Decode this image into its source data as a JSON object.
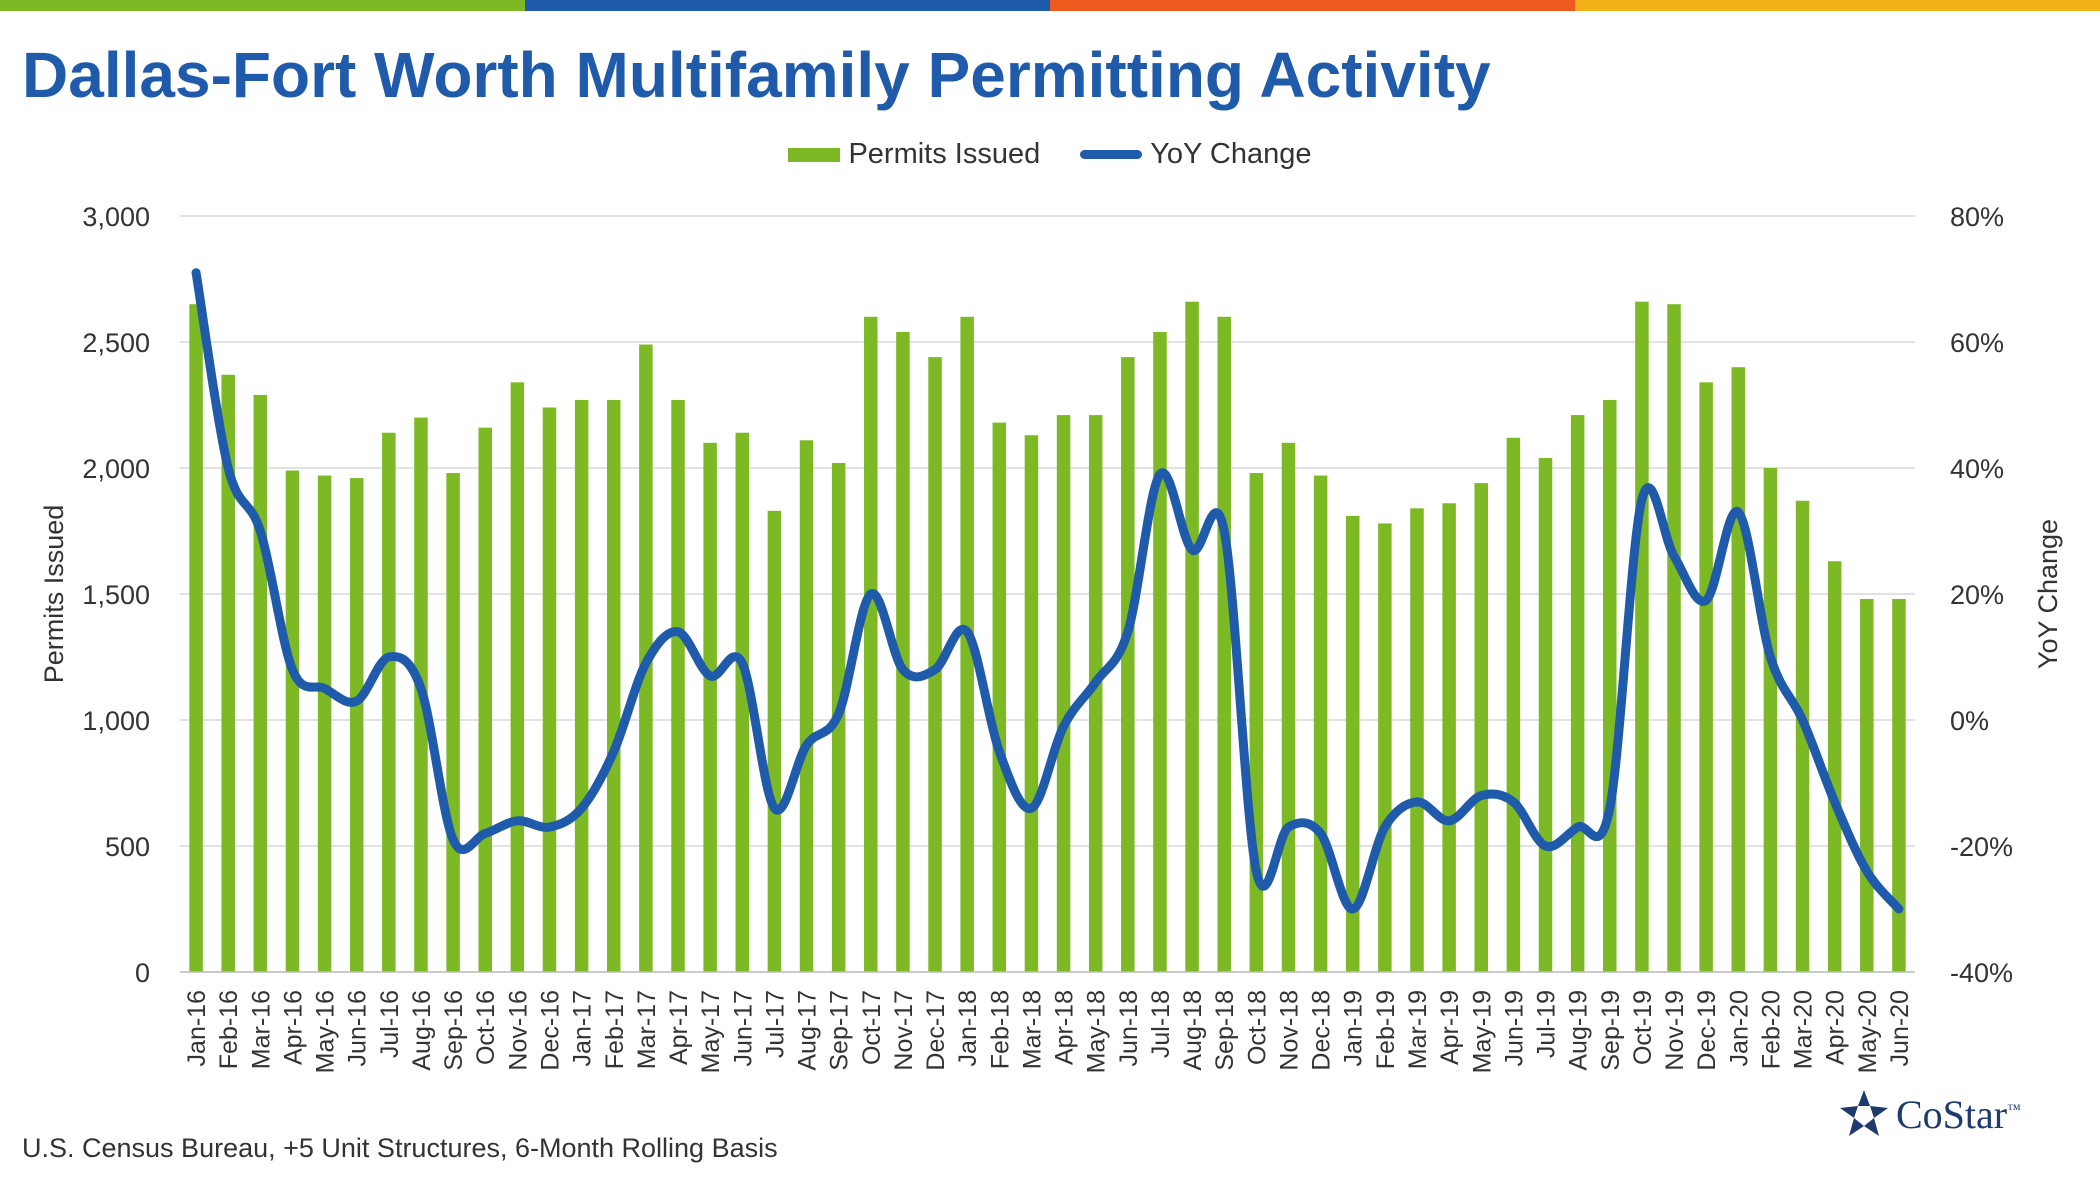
{
  "header": {
    "title": "Dallas-Fort Worth Multifamily Permitting Activity",
    "band_colors": [
      "#7CB924",
      "#1F5BAA",
      "#EE5A1E",
      "#F3B019"
    ]
  },
  "legend": {
    "bars_label": "Permits Issued",
    "line_label": "YoY Change"
  },
  "footer": {
    "source": "U.S. Census Bureau, +5 Unit Structures, 6-Month Rolling Basis",
    "logo_text": "CoStar",
    "logo_mark": "™"
  },
  "colors": {
    "bar": "#7CB924",
    "line": "#1F5BAA",
    "title": "#1F5BAA",
    "grid": "#D9D9D9"
  },
  "chart_data": {
    "type": "bar",
    "xlabel": "",
    "ylabel": "Permits Issued",
    "y2label": "YoY Change",
    "ylim": [
      0,
      3000
    ],
    "y2lim": [
      -40,
      80
    ],
    "yticks": [
      "0",
      "500",
      "1,000",
      "1,500",
      "2,000",
      "2,500",
      "3,000"
    ],
    "y2ticks": [
      "-40%",
      "-20%",
      "0%",
      "20%",
      "40%",
      "60%",
      "80%"
    ],
    "grid": true,
    "legend_position": "top",
    "categories": [
      "Jan-16",
      "Feb-16",
      "Mar-16",
      "Apr-16",
      "May-16",
      "Jun-16",
      "Jul-16",
      "Aug-16",
      "Sep-16",
      "Oct-16",
      "Nov-16",
      "Dec-16",
      "Jan-17",
      "Feb-17",
      "Mar-17",
      "Apr-17",
      "May-17",
      "Jun-17",
      "Jul-17",
      "Aug-17",
      "Sep-17",
      "Oct-17",
      "Nov-17",
      "Dec-17",
      "Jan-18",
      "Feb-18",
      "Mar-18",
      "Apr-18",
      "May-18",
      "Jun-18",
      "Jul-18",
      "Aug-18",
      "Sep-18",
      "Oct-18",
      "Nov-18",
      "Dec-18",
      "Jan-19",
      "Feb-19",
      "Mar-19",
      "Apr-19",
      "May-19",
      "Jun-19",
      "Jul-19",
      "Aug-19",
      "Sep-19",
      "Oct-19",
      "Nov-19",
      "Dec-19",
      "Jan-20",
      "Feb-20",
      "Mar-20",
      "Apr-20",
      "May-20",
      "Jun-20"
    ],
    "series": [
      {
        "name": "Permits Issued",
        "kind": "bar",
        "axis": "left",
        "values": [
          2650,
          2370,
          2290,
          1990,
          1970,
          1960,
          2140,
          2200,
          1980,
          2160,
          2340,
          2240,
          2270,
          2270,
          2490,
          2270,
          2100,
          2140,
          1830,
          2110,
          2020,
          2600,
          2540,
          2440,
          2600,
          2180,
          2130,
          2210,
          2210,
          2440,
          2540,
          2660,
          2600,
          1980,
          2100,
          1970,
          1810,
          1780,
          1840,
          1860,
          1940,
          2120,
          2040,
          2210,
          2270,
          2660,
          2650,
          2340,
          2400,
          2000,
          1870,
          1630,
          1480,
          1480
        ]
      },
      {
        "name": "YoY Change",
        "kind": "line",
        "axis": "right",
        "values": [
          71,
          40,
          30,
          8,
          5,
          3,
          10,
          5,
          -19,
          -18,
          -16,
          -17,
          -14,
          -5,
          9,
          14,
          7,
          9,
          -14,
          -4,
          1,
          20,
          8,
          8,
          14,
          -5,
          -14,
          -1,
          6,
          14,
          39,
          27,
          30,
          -24,
          -17,
          -18,
          -30,
          -17,
          -13,
          -16,
          -12,
          -13,
          -20,
          -17,
          -14,
          35,
          26,
          19,
          33,
          10,
          0,
          -13,
          -24,
          -30
        ]
      }
    ]
  }
}
